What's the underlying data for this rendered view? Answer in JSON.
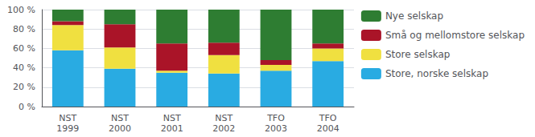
{
  "chart_data": {
    "type": "bar",
    "stacked": true,
    "categories": [
      "NST\n1999",
      "NST\n2000",
      "NST\n2001",
      "NST\n2002",
      "TFO\n2003",
      "TFO\n2004"
    ],
    "series": [
      {
        "name": "Store, norske selskap",
        "color": "#29ABE2",
        "values": [
          58,
          39,
          35,
          34,
          37,
          47
        ]
      },
      {
        "name": "Store selskap",
        "color": "#F0E040",
        "values": [
          26,
          22,
          2,
          19,
          6,
          13
        ]
      },
      {
        "name": "Små og mellomstore selskap",
        "color": "#AA1428",
        "values": [
          4,
          24,
          28,
          13,
          5,
          5
        ]
      },
      {
        "name": "Nye selskap",
        "color": "#2E7D32",
        "values": [
          12,
          15,
          35,
          34,
          52,
          35
        ]
      }
    ],
    "ylim": [
      0,
      100
    ],
    "yticks": [
      {
        "value": 0,
        "label": "0 %"
      },
      {
        "value": 20,
        "label": "20 %"
      },
      {
        "value": 40,
        "label": "40 %"
      },
      {
        "value": 60,
        "label": "60 %"
      },
      {
        "value": 80,
        "label": "80 %"
      },
      {
        "value": 100,
        "label": "100 %"
      }
    ],
    "grid": true,
    "legend": "right"
  }
}
